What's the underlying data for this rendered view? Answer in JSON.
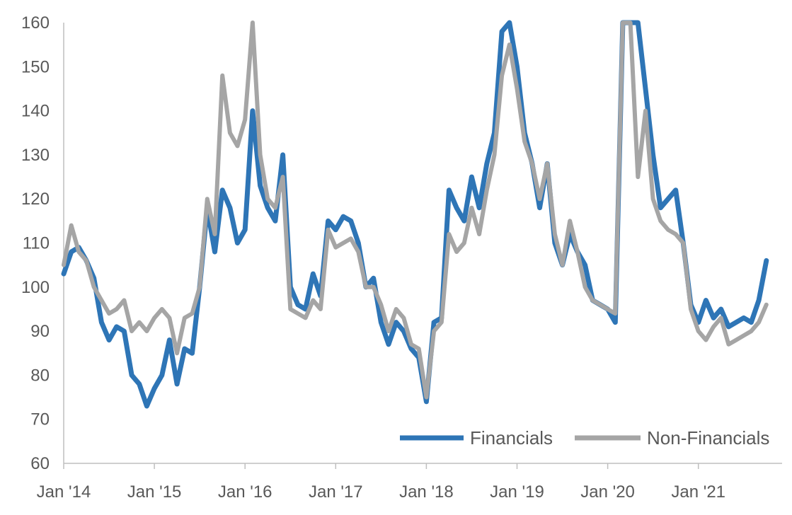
{
  "chart_data": {
    "type": "line",
    "title": "",
    "xlabel": "",
    "ylabel": "",
    "ylim": [
      60,
      160
    ],
    "yticks": [
      "60",
      "70",
      "80",
      "90",
      "100",
      "110",
      "120",
      "130",
      "140",
      "150",
      "160"
    ],
    "xticks": [
      "Jan '14",
      "Jan '15",
      "Jan '16",
      "Jan '17",
      "Jan '18",
      "Jan '19",
      "Jan '20",
      "Jan '21"
    ],
    "x_start": "2014-01",
    "x_frequency": "monthly",
    "grid": false,
    "legend_position": "bottom-right",
    "series": [
      {
        "name": "Financials",
        "color": "#2E75B6",
        "values": [
          103,
          108,
          109,
          106,
          102,
          92,
          88,
          91,
          90,
          80,
          78,
          73,
          77,
          80,
          88,
          78,
          86,
          85,
          100,
          118,
          108,
          122,
          118,
          110,
          113,
          140,
          123,
          118,
          115,
          130,
          100,
          96,
          95,
          103,
          98,
          115,
          113,
          116,
          115,
          110,
          100,
          102,
          92,
          87,
          92,
          90,
          86,
          84,
          74,
          92,
          93,
          122,
          118,
          115,
          125,
          118,
          128,
          135,
          158,
          160,
          150,
          135,
          128,
          118,
          128,
          110,
          105,
          112,
          108,
          105,
          97,
          96,
          95,
          92,
          160,
          160,
          160,
          145,
          130,
          118,
          120,
          122,
          110,
          96,
          92,
          97,
          93,
          95,
          91,
          92,
          93,
          92,
          97,
          106
        ]
      },
      {
        "name": "Non-Financials",
        "color": "#A5A5A5",
        "values": [
          105,
          114,
          108,
          106,
          100,
          97,
          94,
          95,
          97,
          90,
          92,
          90,
          93,
          95,
          93,
          85,
          93,
          94,
          100,
          120,
          112,
          148,
          135,
          132,
          138,
          160,
          130,
          120,
          118,
          125,
          95,
          94,
          93,
          97,
          95,
          113,
          109,
          110,
          111,
          108,
          100,
          100,
          96,
          90,
          95,
          93,
          87,
          86,
          75,
          90,
          92,
          112,
          108,
          110,
          118,
          112,
          122,
          130,
          148,
          155,
          145,
          133,
          128,
          120,
          128,
          112,
          105,
          115,
          108,
          100,
          97,
          96,
          95,
          94,
          160,
          160,
          125,
          140,
          120,
          115,
          113,
          112,
          110,
          95,
          90,
          88,
          91,
          93,
          87,
          88,
          89,
          90,
          92,
          96
        ]
      }
    ]
  }
}
